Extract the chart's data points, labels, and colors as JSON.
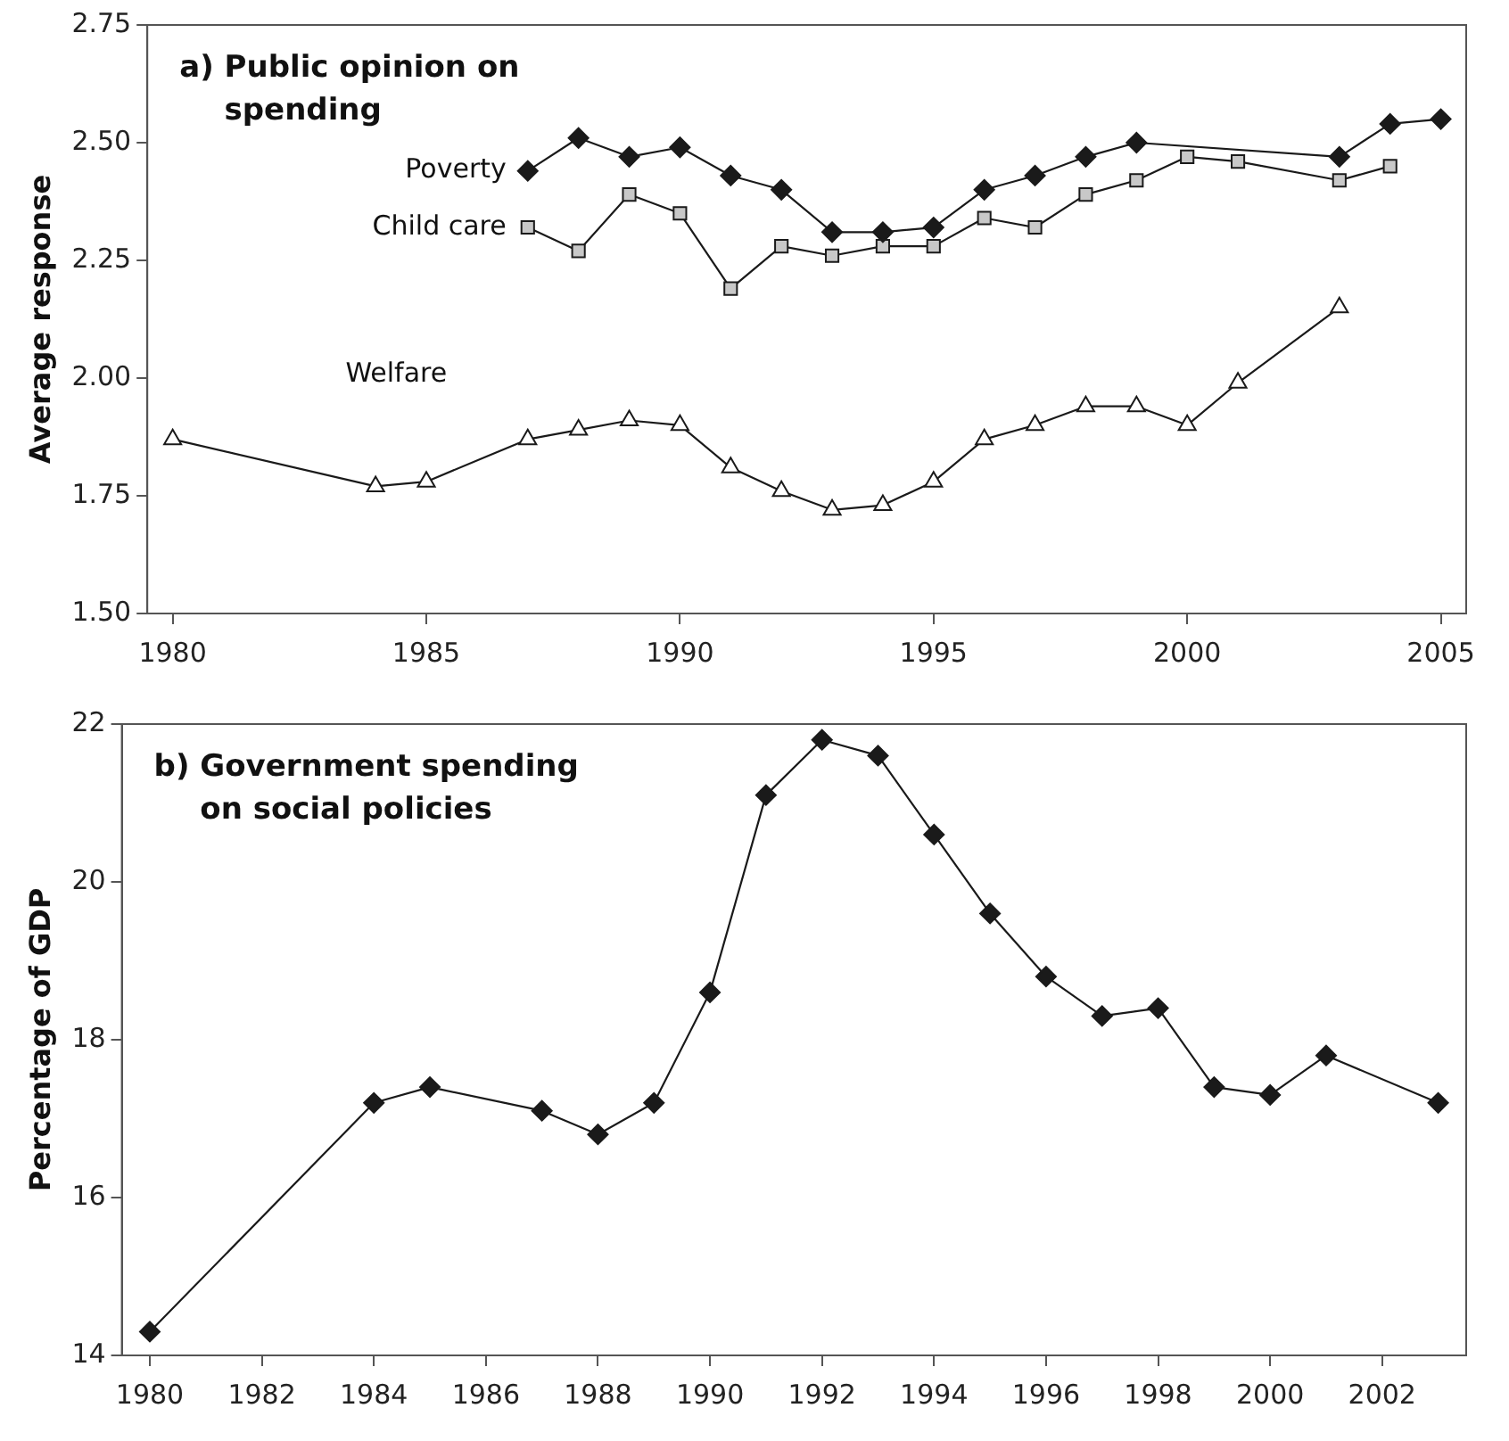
{
  "chart_data": [
    {
      "type": "line",
      "title": "a) Public opinion on spending",
      "ylabel": "Average response",
      "xlim": [
        1979.5,
        2005.5
      ],
      "xticks": [
        1980,
        1985,
        1990,
        1995,
        2000,
        2005
      ],
      "ylim": [
        1.5,
        2.75
      ],
      "yticks": [
        {
          "value": 1.5,
          "label": "1.50"
        },
        {
          "value": 1.75,
          "label": "1.75"
        },
        {
          "value": 2,
          "label": "2.00"
        },
        {
          "value": 2.25,
          "label": "2.25"
        },
        {
          "value": 2.5,
          "label": "2.50"
        },
        {
          "value": 2.75,
          "label": "2.75"
        }
      ],
      "grid": false,
      "legend": false,
      "series": [
        {
          "name": "Poverty",
          "color": "#1a1a1a",
          "marker": "diamond",
          "x": [
            1987,
            1988,
            1989,
            1990,
            1991,
            1992,
            1993,
            1994,
            1995,
            1996,
            1997,
            1998,
            1999,
            2003,
            2004,
            2005
          ],
          "values": [
            2.44,
            2.51,
            2.47,
            2.49,
            2.43,
            2.4,
            2.31,
            2.31,
            2.32,
            2.4,
            2.43,
            2.47,
            2.5,
            2.47,
            2.54,
            2.55
          ]
        },
        {
          "name": "Child care",
          "color": "#c8c8c8",
          "marker": "square",
          "x": [
            1987,
            1988,
            1989,
            1990,
            1991,
            1992,
            1993,
            1994,
            1995,
            1996,
            1997,
            1998,
            1999,
            2000,
            2001,
            2003,
            2004
          ],
          "values": [
            2.32,
            2.27,
            2.39,
            2.35,
            2.19,
            2.28,
            2.26,
            2.28,
            2.28,
            2.34,
            2.32,
            2.39,
            2.42,
            2.47,
            2.46,
            2.42,
            2.45
          ]
        },
        {
          "name": "Welfare",
          "color": "#ffffff",
          "marker": "triangle",
          "x": [
            1980,
            1984,
            1985,
            1987,
            1988,
            1989,
            1990,
            1991,
            1992,
            1993,
            1994,
            1995,
            1996,
            1997,
            1998,
            1999,
            2000,
            2001,
            2003
          ],
          "values": [
            1.87,
            1.77,
            1.78,
            1.87,
            1.89,
            1.91,
            1.9,
            1.81,
            1.76,
            1.72,
            1.73,
            1.78,
            1.87,
            1.9,
            1.94,
            1.94,
            1.9,
            1.99,
            2.15
          ]
        }
      ]
    },
    {
      "type": "line",
      "title": "b) Government spending on social policies",
      "ylabel": "Percentage of GDP",
      "xlim": [
        1979.5,
        2003.5
      ],
      "xticks": [
        1980,
        1982,
        1984,
        1986,
        1988,
        1990,
        1992,
        1994,
        1996,
        1998,
        2000,
        2002
      ],
      "ylim": [
        14,
        22
      ],
      "yticks": [
        14,
        16,
        18,
        20,
        22
      ],
      "grid": false,
      "legend": false,
      "marker": "diamond",
      "series": [
        {
          "color": "#1a1a1a",
          "x": [
            1980,
            1984,
            1985,
            1987,
            1988,
            1989,
            1990,
            1991,
            1992,
            1993,
            1994,
            1995,
            1996,
            1997,
            1998,
            1999,
            2000,
            2001,
            2003
          ],
          "values": [
            14.3,
            17.2,
            17.4,
            17.1,
            16.8,
            17.2,
            18.6,
            21.1,
            21.8,
            21.6,
            20.6,
            19.6,
            18.8,
            18.3,
            18.4,
            17.4,
            17.3,
            17.8,
            17.2
          ]
        }
      ]
    }
  ]
}
